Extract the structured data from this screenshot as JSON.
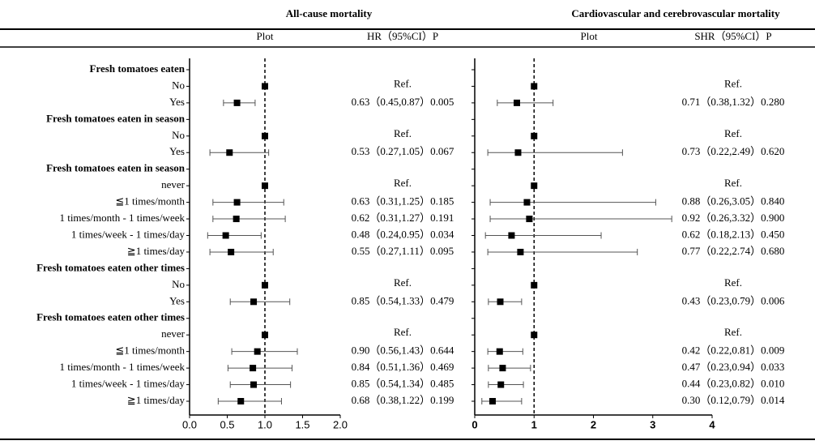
{
  "chart_data": [
    {
      "type": "forest",
      "title": "All-cause mortality",
      "plot_header": "Plot",
      "value_header": "HR（95%CI）P",
      "categories": [
        "Fresh tomatoes eaten",
        "No",
        "Yes",
        "Fresh tomatoes eaten in season",
        "No",
        "Yes",
        "Fresh tomatoes eaten in season",
        "never",
        "≦1 times/month",
        "1 times/month - 1 times/week",
        "1 times/week - 1 times/day",
        "≧1 times/day",
        "Fresh tomatoes eaten other times",
        "No",
        "Yes",
        "Fresh tomatoes eaten other times",
        "never",
        "≦1 times/month",
        "1 times/month - 1 times/week",
        "1 times/week - 1 times/day",
        "≧1 times/day"
      ],
      "values": [
        null,
        1,
        0.63,
        null,
        1,
        0.53,
        null,
        1,
        0.63,
        0.62,
        0.48,
        0.55,
        null,
        1,
        0.85,
        null,
        1,
        0.9,
        0.84,
        0.85,
        0.68
      ],
      "lower": [
        null,
        null,
        0.45,
        null,
        null,
        0.27,
        null,
        null,
        0.31,
        0.31,
        0.24,
        0.27,
        null,
        null,
        0.54,
        null,
        null,
        0.56,
        0.51,
        0.54,
        0.38
      ],
      "upper": [
        null,
        null,
        0.87,
        null,
        null,
        1.05,
        null,
        null,
        1.25,
        1.27,
        0.95,
        1.11,
        null,
        null,
        1.33,
        null,
        null,
        1.43,
        1.36,
        1.34,
        1.22
      ],
      "value_labels": [
        null,
        "Ref.",
        "0.63（0.45,0.87）0.005",
        null,
        "Ref.",
        "0.53（0.27,1.05）0.067",
        null,
        "Ref.",
        "0.63（0.31,1.25）0.185",
        "0.62（0.31,1.27）0.191",
        "0.48（0.24,0.95）0.034",
        "0.55（0.27,1.11）0.095",
        null,
        "Ref.",
        "0.85（0.54,1.33）0.479",
        null,
        "Ref.",
        "0.90（0.56,1.43）0.644",
        "0.84（0.51,1.36）0.469",
        "0.85（0.54,1.34）0.485",
        "0.68（0.38,1.22）0.199"
      ],
      "xlim": [
        0,
        2
      ],
      "xticks": [
        {
          "value": 0,
          "label": "0.0"
        },
        {
          "value": 0.5,
          "label": "0.5"
        },
        {
          "value": 1,
          "label": "1.0"
        },
        {
          "value": 1.5,
          "label": "1.5"
        },
        {
          "value": 2,
          "label": "2.0"
        }
      ],
      "reference_line": 1,
      "color": "#000000"
    },
    {
      "type": "forest",
      "title": "Cardiovascular and cerebrovascular mortality",
      "plot_header": "Plot",
      "value_header": "SHR（95%CI）P",
      "values": [
        null,
        1,
        0.71,
        null,
        1,
        0.73,
        null,
        1,
        0.88,
        0.92,
        0.62,
        0.77,
        null,
        1,
        0.43,
        null,
        1,
        0.42,
        0.47,
        0.44,
        0.3
      ],
      "lower": [
        null,
        null,
        0.38,
        null,
        null,
        0.22,
        null,
        null,
        0.26,
        0.26,
        0.18,
        0.22,
        null,
        null,
        0.23,
        null,
        null,
        0.22,
        0.23,
        0.23,
        0.12
      ],
      "upper": [
        null,
        null,
        1.32,
        null,
        null,
        2.49,
        null,
        null,
        3.05,
        3.32,
        2.13,
        2.74,
        null,
        null,
        0.79,
        null,
        null,
        0.81,
        0.94,
        0.82,
        0.79
      ],
      "value_labels": [
        null,
        "Ref.",
        "0.71（0.38,1.32）0.280",
        null,
        "Ref.",
        "0.73（0.22,2.49）0.620",
        null,
        "Ref.",
        "0.88（0.26,3.05）0.840",
        "0.92（0.26,3.32）0.900",
        "0.62（0.18,2.13）0.450",
        "0.77（0.22,2.74）0.680",
        null,
        "Ref.",
        "0.43（0.23,0.79）0.006",
        null,
        "Ref.",
        "0.42（0.22,0.81）0.009",
        "0.47（0.23,0.94）0.033",
        "0.44（0.23,0.82）0.010",
        "0.30（0.12,0.79）0.014"
      ],
      "xlim": [
        0,
        4
      ],
      "xticks": [
        0,
        1,
        2,
        3,
        4
      ],
      "reference_line": 1,
      "color": "#000000"
    }
  ]
}
